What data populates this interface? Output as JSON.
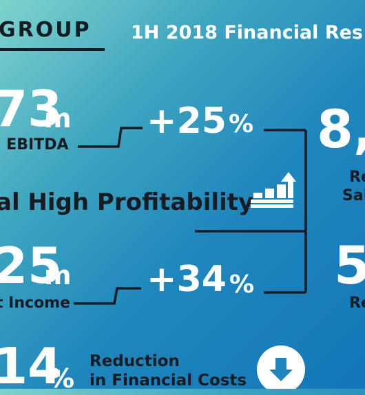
{
  "header": {
    "brand": "GROUP",
    "title": "1H 2018 Financial Res"
  },
  "ebitda": {
    "value": "73",
    "unit": "m",
    "label": "l EBITDA",
    "growth": "+25",
    "growth_pct": "%"
  },
  "sales": {
    "value": "8,",
    "label_line1": "Re",
    "label_line2": "Sal"
  },
  "headline": "al High Profitability",
  "net_income": {
    "value": "25",
    "unit": "m",
    "label": "t Income",
    "growth": "+34",
    "growth_pct": "%"
  },
  "second_metric": {
    "value": "5",
    "label": "Re"
  },
  "reduction": {
    "value": "14",
    "pct": "%",
    "label_line1": "Reduction",
    "label_line2": "in Financial Costs"
  },
  "icons": {
    "bars": "bar-chart-up-arrow-icon",
    "down": "down-arrow-circle-icon"
  },
  "colors": {
    "dark": "#161b24",
    "white": "#ffffff"
  }
}
